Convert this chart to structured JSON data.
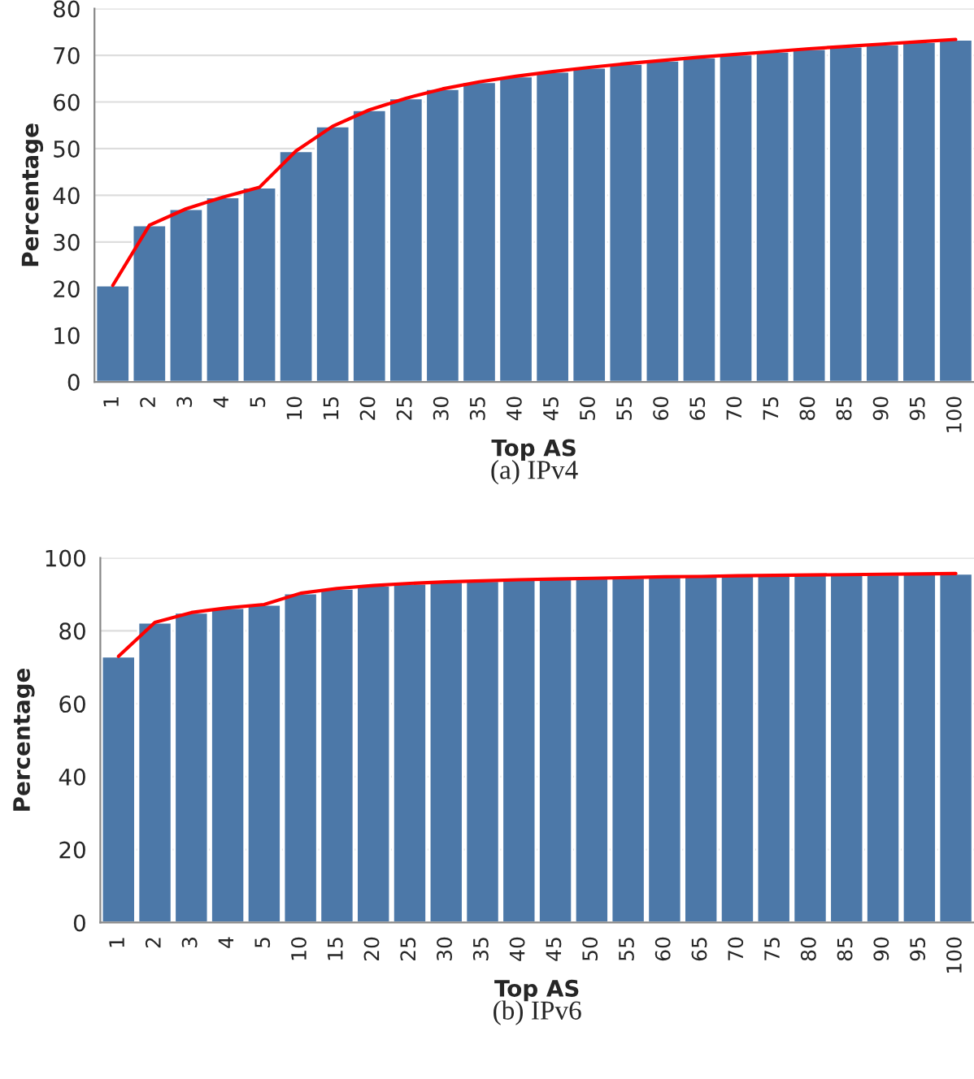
{
  "chart_data": [
    {
      "type": "bar",
      "xlabel": "Top AS",
      "ylabel": "Percentage",
      "categories": [
        "1",
        "2",
        "3",
        "4",
        "5",
        "10",
        "15",
        "20",
        "25",
        "30",
        "35",
        "40",
        "45",
        "50",
        "55",
        "60",
        "65",
        "70",
        "75",
        "80",
        "85",
        "90",
        "95",
        "100"
      ],
      "series": [
        {
          "color": "#4c78a8",
          "values": [
            20.7,
            33.6,
            37.1,
            39.6,
            41.7,
            49.5,
            54.8,
            58.3,
            60.8,
            62.8,
            64.3,
            65.5,
            66.5,
            67.4,
            68.2,
            68.9,
            69.6,
            70.2,
            70.8,
            71.4,
            71.9,
            72.4,
            72.9,
            73.4
          ]
        },
        {
          "type": "line",
          "color": "#ff0000",
          "values": [
            20.7,
            33.6,
            37.1,
            39.6,
            41.7,
            49.5,
            54.8,
            58.3,
            60.8,
            62.8,
            64.3,
            65.5,
            66.5,
            67.4,
            68.2,
            68.9,
            69.6,
            70.2,
            70.8,
            71.4,
            71.9,
            72.4,
            72.9,
            73.4
          ]
        }
      ],
      "ylim": [
        0,
        80
      ],
      "yticks": [
        0,
        10,
        20,
        30,
        40,
        50,
        60,
        70,
        80
      ],
      "grid": "y",
      "annotations": [
        "(a) IPv4"
      ]
    },
    {
      "type": "bar",
      "xlabel": "Top AS",
      "ylabel": "Percentage",
      "categories": [
        "1",
        "2",
        "3",
        "4",
        "5",
        "10",
        "15",
        "20",
        "25",
        "30",
        "35",
        "40",
        "45",
        "50",
        "55",
        "60",
        "65",
        "70",
        "75",
        "80",
        "85",
        "90",
        "95",
        "100"
      ],
      "series": [
        {
          "color": "#4c78a8",
          "values": [
            73.0,
            82.3,
            85.0,
            86.3,
            87.2,
            90.3,
            91.6,
            92.4,
            93.0,
            93.4,
            93.7,
            94.0,
            94.2,
            94.4,
            94.6,
            94.8,
            94.9,
            95.1,
            95.2,
            95.3,
            95.4,
            95.5,
            95.6,
            95.7
          ]
        },
        {
          "type": "line",
          "color": "#ff0000",
          "values": [
            73.0,
            82.3,
            85.0,
            86.3,
            87.2,
            90.3,
            91.6,
            92.4,
            93.0,
            93.4,
            93.7,
            94.0,
            94.2,
            94.4,
            94.6,
            94.8,
            94.9,
            95.1,
            95.2,
            95.3,
            95.4,
            95.5,
            95.6,
            95.7
          ]
        }
      ],
      "ylim": [
        0,
        100
      ],
      "yticks": [
        0,
        20,
        40,
        60,
        80,
        100
      ],
      "grid": "y",
      "annotations": [
        "(b) IPv6"
      ]
    }
  ]
}
